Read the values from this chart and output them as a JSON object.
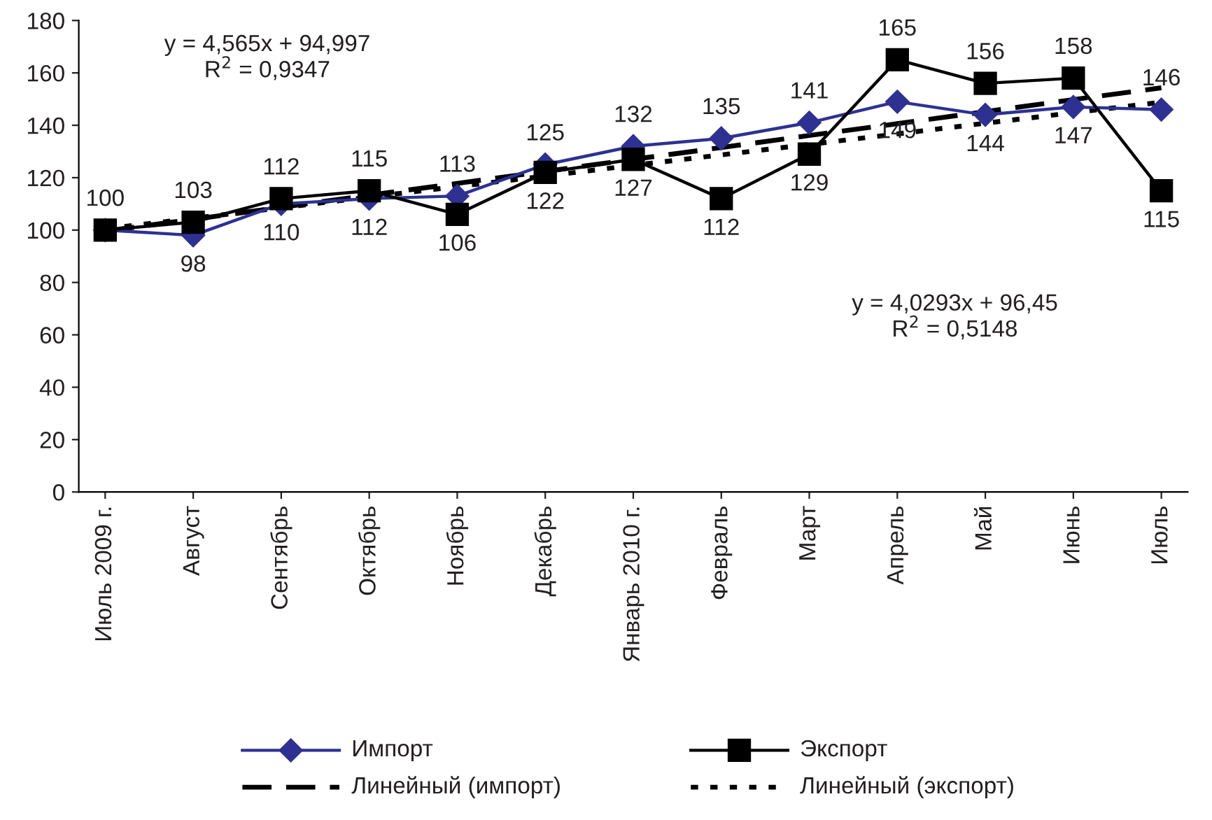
{
  "chart_data": {
    "type": "line",
    "categories": [
      "Июль 2009 г.",
      "Август",
      "Сентябрь",
      "Октябрь",
      "Ноябрь",
      "Декабрь",
      "Январь 2010 г.",
      "Февраль",
      "Март",
      "Апрель",
      "Май",
      "Июнь",
      "Июль"
    ],
    "series": [
      {
        "name": "Импорт",
        "color": "#2e3192",
        "marker": "diamond",
        "line_style": "solid",
        "values": [
          100,
          98,
          110,
          112,
          113,
          125,
          132,
          135,
          141,
          149,
          144,
          147,
          146
        ],
        "value_labels": [
          "100",
          "98",
          "110",
          "112",
          "113",
          "125",
          "132",
          "135",
          "141",
          "149",
          "144",
          "147",
          "146"
        ]
      },
      {
        "name": "Экспорт",
        "color": "#000000",
        "marker": "square",
        "line_style": "solid",
        "values": [
          100,
          103,
          112,
          115,
          106,
          122,
          127,
          112,
          129,
          165,
          156,
          158,
          115
        ],
        "value_labels": [
          null,
          "103",
          "112",
          "115",
          "106",
          "122",
          "127",
          "112",
          "129",
          "165",
          "156",
          "158",
          "115"
        ]
      },
      {
        "name": "Линейный (импорт)",
        "color": "#000000",
        "marker": "none",
        "line_style": "dashed",
        "values": [
          99.6,
          104.1,
          108.7,
          113.3,
          117.8,
          122.4,
          127.0,
          131.5,
          136.1,
          140.6,
          145.2,
          149.8,
          154.3
        ]
      },
      {
        "name": "Линейный (экспорт)",
        "color": "#000000",
        "marker": "none",
        "line_style": "dotted",
        "values": [
          100.5,
          104.5,
          108.5,
          112.6,
          116.6,
          120.6,
          124.7,
          128.7,
          132.7,
          136.7,
          140.8,
          144.8,
          148.8
        ]
      }
    ],
    "annotations": [
      "y = 4,565x + 94,997\nR$^{2}$ = 0,9347",
      "y = 4,0293x + 96,45\nR$^{2}$ = 0,5148"
    ],
    "ylim": [
      0,
      180
    ],
    "yticks": [
      0,
      20,
      40,
      60,
      80,
      100,
      120,
      140,
      160,
      180
    ],
    "grid": false,
    "legend": "bottom"
  }
}
